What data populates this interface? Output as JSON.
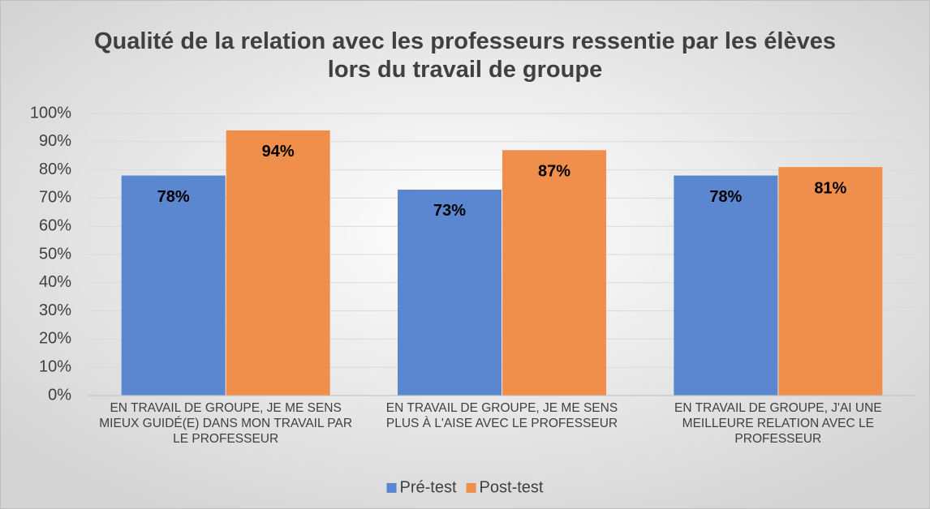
{
  "chart_data": {
    "type": "bar",
    "title": "Qualité de la relation avec les professeurs ressentie par les élèves lors du travail de groupe",
    "categories": [
      "EN TRAVAIL DE GROUPE, JE ME SENS MIEUX GUIDÉ(E) DANS MON TRAVAIL PAR LE PROFESSEUR",
      "EN TRAVAIL DE GROUPE, JE ME SENS PLUS À L'AISE AVEC LE PROFESSEUR",
      "EN TRAVAIL DE GROUPE, J'AI UNE MEILLEURE RELATION AVEC LE PROFESSEUR"
    ],
    "series": [
      {
        "name": "Pré-test",
        "color": "#5b87d0",
        "values": [
          78,
          73,
          78
        ],
        "value_labels": [
          "78%",
          "73%",
          "78%"
        ]
      },
      {
        "name": "Post-test",
        "color": "#ef8f4b",
        "values": [
          94,
          87,
          81
        ],
        "value_labels": [
          "94%",
          "87%",
          "81%"
        ]
      }
    ],
    "ylim": [
      0,
      100
    ],
    "yticks": [
      {
        "value": 0,
        "label": "0%"
      },
      {
        "value": 10,
        "label": "10%"
      },
      {
        "value": 20,
        "label": "20%"
      },
      {
        "value": 30,
        "label": "30%"
      },
      {
        "value": 40,
        "label": "40%"
      },
      {
        "value": 50,
        "label": "50%"
      },
      {
        "value": 60,
        "label": "60%"
      },
      {
        "value": 70,
        "label": "70%"
      },
      {
        "value": 80,
        "label": "80%"
      },
      {
        "value": 90,
        "label": "90%"
      },
      {
        "value": 100,
        "label": "100%"
      }
    ],
    "grid": true,
    "legend": "bottom"
  }
}
